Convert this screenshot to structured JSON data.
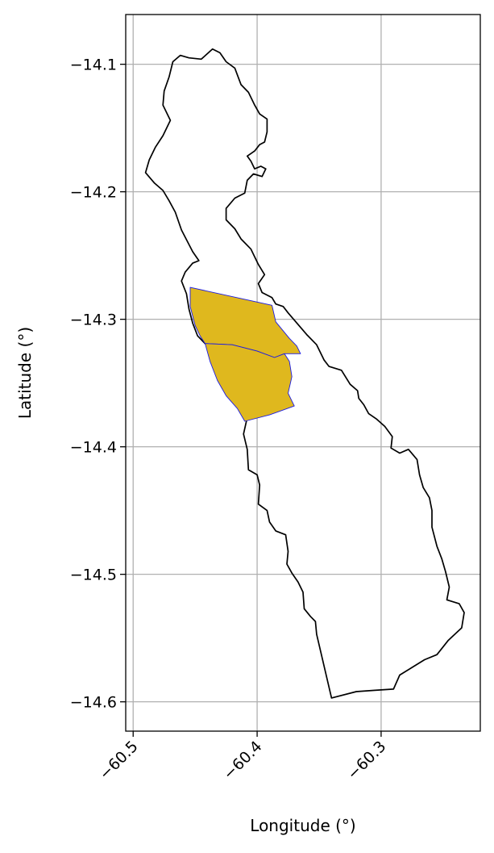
{
  "chart_data": {
    "type": "map",
    "xlabel": "Longitude (°)",
    "ylabel": "Latitude (°)",
    "xlim": [
      -60.506,
      -60.22
    ],
    "ylim": [
      -14.623,
      -14.061
    ],
    "xticks": [
      {
        "value": -60.5,
        "label": "−60.5"
      },
      {
        "value": -60.4,
        "label": "−60.4"
      },
      {
        "value": -60.3,
        "label": "−60.3"
      }
    ],
    "yticks": [
      {
        "value": -14.1,
        "label": "−14.1"
      },
      {
        "value": -14.2,
        "label": "−14.2"
      },
      {
        "value": -14.3,
        "label": "−14.3"
      },
      {
        "value": -14.4,
        "label": "−14.4"
      },
      {
        "value": -14.5,
        "label": "−14.5"
      },
      {
        "value": -14.6,
        "label": "−14.6"
      }
    ],
    "grid": true,
    "colors": {
      "outline": "#000000",
      "fill": "#dfb81e",
      "fill_edge": "#1a1ae6",
      "grid": "#b0b0b0"
    },
    "outline_polygon": [
      [
        -60.468,
        -14.098
      ],
      [
        -60.462,
        -14.093
      ],
      [
        -60.455,
        -14.095
      ],
      [
        -60.445,
        -14.096
      ],
      [
        -60.436,
        -14.088
      ],
      [
        -60.43,
        -14.091
      ],
      [
        -60.425,
        -14.098
      ],
      [
        -60.418,
        -14.103
      ],
      [
        -60.413,
        -14.116
      ],
      [
        -60.407,
        -14.122
      ],
      [
        -60.402,
        -14.132
      ],
      [
        -60.398,
        -14.139
      ],
      [
        -60.392,
        -14.143
      ],
      [
        -60.392,
        -14.153
      ],
      [
        -60.394,
        -14.161
      ],
      [
        -60.398,
        -14.163
      ],
      [
        -60.402,
        -14.168
      ],
      [
        -60.408,
        -14.172
      ],
      [
        -60.405,
        -14.176
      ],
      [
        -60.402,
        -14.182
      ],
      [
        -60.397,
        -14.18
      ],
      [
        -60.393,
        -14.182
      ],
      [
        -60.396,
        -14.188
      ],
      [
        -60.403,
        -14.186
      ],
      [
        -60.408,
        -14.191
      ],
      [
        -60.41,
        -14.201
      ],
      [
        -60.418,
        -14.205
      ],
      [
        -60.425,
        -14.213
      ],
      [
        -60.425,
        -14.222
      ],
      [
        -60.418,
        -14.229
      ],
      [
        -60.413,
        -14.237
      ],
      [
        -60.405,
        -14.245
      ],
      [
        -60.399,
        -14.257
      ],
      [
        -60.394,
        -14.265
      ],
      [
        -60.399,
        -14.272
      ],
      [
        -60.396,
        -14.279
      ],
      [
        -60.388,
        -14.283
      ],
      [
        -60.385,
        -14.288
      ],
      [
        -60.379,
        -14.29
      ],
      [
        -60.375,
        -14.295
      ],
      [
        -60.36,
        -14.312
      ],
      [
        -60.352,
        -14.32
      ],
      [
        -60.346,
        -14.332
      ],
      [
        -60.342,
        -14.337
      ],
      [
        -60.332,
        -14.34
      ],
      [
        -60.325,
        -14.351
      ],
      [
        -60.319,
        -14.356
      ],
      [
        -60.318,
        -14.362
      ],
      [
        -60.314,
        -14.367
      ],
      [
        -60.31,
        -14.374
      ],
      [
        -60.304,
        -14.378
      ],
      [
        -60.297,
        -14.384
      ],
      [
        -60.291,
        -14.392
      ],
      [
        -60.292,
        -14.401
      ],
      [
        -60.285,
        -14.405
      ],
      [
        -60.278,
        -14.402
      ],
      [
        -60.271,
        -14.41
      ],
      [
        -60.269,
        -14.422
      ],
      [
        -60.266,
        -14.432
      ],
      [
        -60.261,
        -14.44
      ],
      [
        -60.259,
        -14.45
      ],
      [
        -60.259,
        -14.463
      ],
      [
        -60.255,
        -14.478
      ],
      [
        -60.251,
        -14.488
      ],
      [
        -60.248,
        -14.498
      ],
      [
        -60.245,
        -14.51
      ],
      [
        -60.247,
        -14.52
      ],
      [
        -60.237,
        -14.523
      ],
      [
        -60.233,
        -14.53
      ],
      [
        -60.235,
        -14.542
      ],
      [
        -60.246,
        -14.552
      ],
      [
        -60.255,
        -14.563
      ],
      [
        -60.265,
        -14.567
      ],
      [
        -60.275,
        -14.573
      ],
      [
        -60.285,
        -14.579
      ],
      [
        -60.29,
        -14.59
      ],
      [
        -60.305,
        -14.591
      ],
      [
        -60.32,
        -14.592
      ],
      [
        -60.34,
        -14.597
      ],
      [
        -60.352,
        -14.547
      ],
      [
        -60.353,
        -14.537
      ],
      [
        -60.357,
        -14.533
      ],
      [
        -60.362,
        -14.527
      ],
      [
        -60.363,
        -14.514
      ],
      [
        -60.367,
        -14.506
      ],
      [
        -60.372,
        -14.499
      ],
      [
        -60.376,
        -14.492
      ],
      [
        -60.375,
        -14.482
      ],
      [
        -60.377,
        -14.469
      ],
      [
        -60.385,
        -14.466
      ],
      [
        -60.39,
        -14.459
      ],
      [
        -60.392,
        -14.45
      ],
      [
        -60.399,
        -14.445
      ],
      [
        -60.398,
        -14.43
      ],
      [
        -60.4,
        -14.422
      ],
      [
        -60.407,
        -14.418
      ],
      [
        -60.408,
        -14.402
      ],
      [
        -60.411,
        -14.39
      ],
      [
        -60.408,
        -14.377
      ],
      [
        -60.406,
        -14.368
      ],
      [
        -60.411,
        -14.362
      ],
      [
        -60.418,
        -14.358
      ],
      [
        -60.425,
        -14.345
      ],
      [
        -60.432,
        -14.336
      ],
      [
        -60.438,
        -14.323
      ],
      [
        -60.448,
        -14.313
      ],
      [
        -60.452,
        -14.303
      ],
      [
        -60.455,
        -14.292
      ],
      [
        -60.457,
        -14.28
      ],
      [
        -60.461,
        -14.27
      ],
      [
        -60.458,
        -14.263
      ],
      [
        -60.452,
        -14.256
      ],
      [
        -60.447,
        -14.254
      ],
      [
        -60.452,
        -14.247
      ],
      [
        -60.461,
        -14.23
      ],
      [
        -60.466,
        -14.216
      ],
      [
        -60.471,
        -14.207
      ],
      [
        -60.476,
        -14.199
      ],
      [
        -60.483,
        -14.193
      ],
      [
        -60.49,
        -14.185
      ],
      [
        -60.487,
        -14.175
      ],
      [
        -60.482,
        -14.165
      ],
      [
        -60.476,
        -14.156
      ],
      [
        -60.47,
        -14.144
      ],
      [
        -60.476,
        -14.132
      ],
      [
        -60.475,
        -14.121
      ],
      [
        -60.471,
        -14.11
      ]
    ],
    "fill_polygons": [
      [
        [
          -60.454,
          -14.275
        ],
        [
          -60.388,
          -14.289
        ],
        [
          -60.385,
          -14.302
        ],
        [
          -60.374,
          -14.315
        ],
        [
          -60.368,
          -14.321
        ],
        [
          -60.365,
          -14.327
        ],
        [
          -60.378,
          -14.327
        ],
        [
          -60.386,
          -14.33
        ],
        [
          -60.4,
          -14.325
        ],
        [
          -60.42,
          -14.32
        ],
        [
          -60.442,
          -14.319
        ],
        [
          -60.446,
          -14.313
        ],
        [
          -60.45,
          -14.305
        ],
        [
          -60.454,
          -14.29
        ]
      ],
      [
        [
          -60.442,
          -14.319
        ],
        [
          -60.42,
          -14.32
        ],
        [
          -60.4,
          -14.325
        ],
        [
          -60.386,
          -14.33
        ],
        [
          -60.378,
          -14.327
        ],
        [
          -60.374,
          -14.333
        ],
        [
          -60.372,
          -14.345
        ],
        [
          -60.375,
          -14.358
        ],
        [
          -60.37,
          -14.368
        ],
        [
          -60.39,
          -14.375
        ],
        [
          -60.41,
          -14.38
        ],
        [
          -60.416,
          -14.37
        ],
        [
          -60.425,
          -14.36
        ],
        [
          -60.432,
          -14.348
        ],
        [
          -60.438,
          -14.333
        ]
      ]
    ]
  }
}
